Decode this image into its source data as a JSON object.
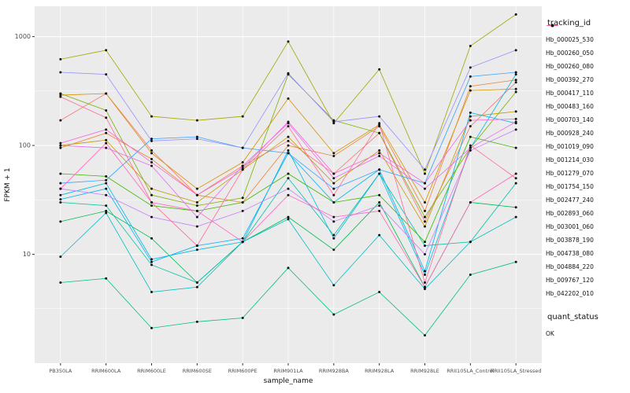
{
  "figure": {
    "background": "#ffffff"
  },
  "chart_data": {
    "type": "line",
    "title": "",
    "xlabel": "sample_name",
    "ylabel": "FPKM + 1",
    "y_scale": "log10",
    "ylim": [
      1,
      1900
    ],
    "y_ticks": [
      10,
      100,
      1000
    ],
    "y_tick_labels": [
      "10",
      "100",
      "1000"
    ],
    "y_minor": [
      3.162,
      31.62,
      316.2
    ],
    "panel_bg": "#EBEBEB",
    "grid_color": "#FFFFFF",
    "point_color": "#111111",
    "axis_text_color": "#4d4d4d",
    "legend_position": "right",
    "legend_title": "tracking_id",
    "shape_legend": {
      "title": "quant_status",
      "items": [
        {
          "label": "OK",
          "color": "#111111"
        }
      ]
    },
    "categories": [
      "PB350LA",
      "RRIM600LA",
      "RRIM600LE",
      "RRIM600SE",
      "RRIM600PE",
      "RRIM901LA",
      "RRIM928BA",
      "RRIM928LA",
      "RRIM928LE",
      "RRII105LA_Control",
      "RRII105LA_Stressed"
    ],
    "series": [
      {
        "name": "Hb_000025_530",
        "color": "#F8766D",
        "values": [
          170,
          300,
          90,
          35,
          65,
          110,
          55,
          130,
          20,
          150,
          380
        ]
      },
      {
        "name": "Hb_000260_050",
        "color": "#EB8335",
        "values": [
          95,
          130,
          75,
          35,
          30,
          100,
          80,
          150,
          25,
          350,
          400
        ]
      },
      {
        "name": "Hb_000260_080",
        "color": "#D89000",
        "values": [
          290,
          300,
          85,
          40,
          70,
          270,
          85,
          155,
          30,
          320,
          330
        ]
      },
      {
        "name": "Hb_000392_270",
        "color": "#C09B00",
        "values": [
          100,
          112,
          40,
          30,
          60,
          120,
          45,
          90,
          18,
          185,
          205
        ]
      },
      {
        "name": "Hb_000417_110",
        "color": "#A3A500",
        "values": [
          620,
          750,
          185,
          170,
          185,
          900,
          160,
          500,
          55,
          820,
          1600
        ]
      },
      {
        "name": "Hb_000483_160",
        "color": "#7CAE00",
        "values": [
          300,
          210,
          35,
          28,
          33,
          450,
          170,
          130,
          22,
          95,
          310
        ]
      },
      {
        "name": "Hb_000703_140",
        "color": "#39B600",
        "values": [
          55,
          52,
          28,
          25,
          30,
          55,
          30,
          35,
          13,
          120,
          95
        ]
      },
      {
        "name": "Hb_000928_240",
        "color": "#00BB4E",
        "values": [
          20,
          25,
          14,
          5.5,
          13,
          22,
          11,
          30,
          5,
          30,
          27
        ]
      },
      {
        "name": "Hb_001019_090",
        "color": "#00BF7D",
        "values": [
          5.5,
          6,
          2.1,
          2.4,
          2.6,
          7.5,
          2.8,
          4.5,
          1.8,
          6.5,
          8.5
        ]
      },
      {
        "name": "Hb_001214_030",
        "color": "#00C1A3",
        "values": [
          30,
          28,
          8,
          5.5,
          13,
          50,
          15,
          55,
          12,
          13,
          45
        ]
      },
      {
        "name": "Hb_001279_070",
        "color": "#00BFC4",
        "values": [
          9.5,
          24,
          4.5,
          5,
          13,
          21,
          5.2,
          15,
          4.8,
          13,
          22
        ]
      },
      {
        "name": "Hb_001754_150",
        "color": "#00BAE0",
        "values": [
          35,
          45,
          9,
          11,
          13,
          90,
          14,
          55,
          6.5,
          95,
          450
        ]
      },
      {
        "name": "Hb_002477_240",
        "color": "#00B0F6",
        "values": [
          32,
          40,
          8.5,
          12,
          14,
          85,
          30,
          60,
          7,
          200,
          160
        ]
      },
      {
        "name": "Hb_002893_060",
        "color": "#35A2FF",
        "values": [
          45,
          48,
          115,
          120,
          95,
          85,
          40,
          60,
          45,
          430,
          470
        ]
      },
      {
        "name": "Hb_003001_060",
        "color": "#9590FF",
        "values": [
          470,
          450,
          110,
          115,
          95,
          460,
          165,
          185,
          60,
          520,
          750
        ]
      },
      {
        "name": "Hb_003878_190",
        "color": "#C77CFF",
        "values": [
          40,
          35,
          22,
          18,
          25,
          40,
          20,
          28,
          10,
          90,
          140
        ]
      },
      {
        "name": "Hb_004738_080",
        "color": "#E76BF3",
        "values": [
          100,
          95,
          65,
          22,
          65,
          160,
          50,
          80,
          40,
          95,
          165
        ]
      },
      {
        "name": "Hb_004884_220",
        "color": "#FA62DB",
        "values": [
          105,
          140,
          70,
          35,
          62,
          165,
          55,
          85,
          45,
          170,
          175
        ]
      },
      {
        "name": "Hb_009767_120",
        "color": "#FF62BC",
        "values": [
          40,
          105,
          30,
          25,
          13,
          35,
          22,
          25,
          5,
          30,
          55
        ]
      },
      {
        "name": "Hb_042202_010",
        "color": "#FF6A98",
        "values": [
          280,
          180,
          30,
          12,
          60,
          150,
          35,
          160,
          5.5,
          100,
          50
        ]
      }
    ]
  }
}
